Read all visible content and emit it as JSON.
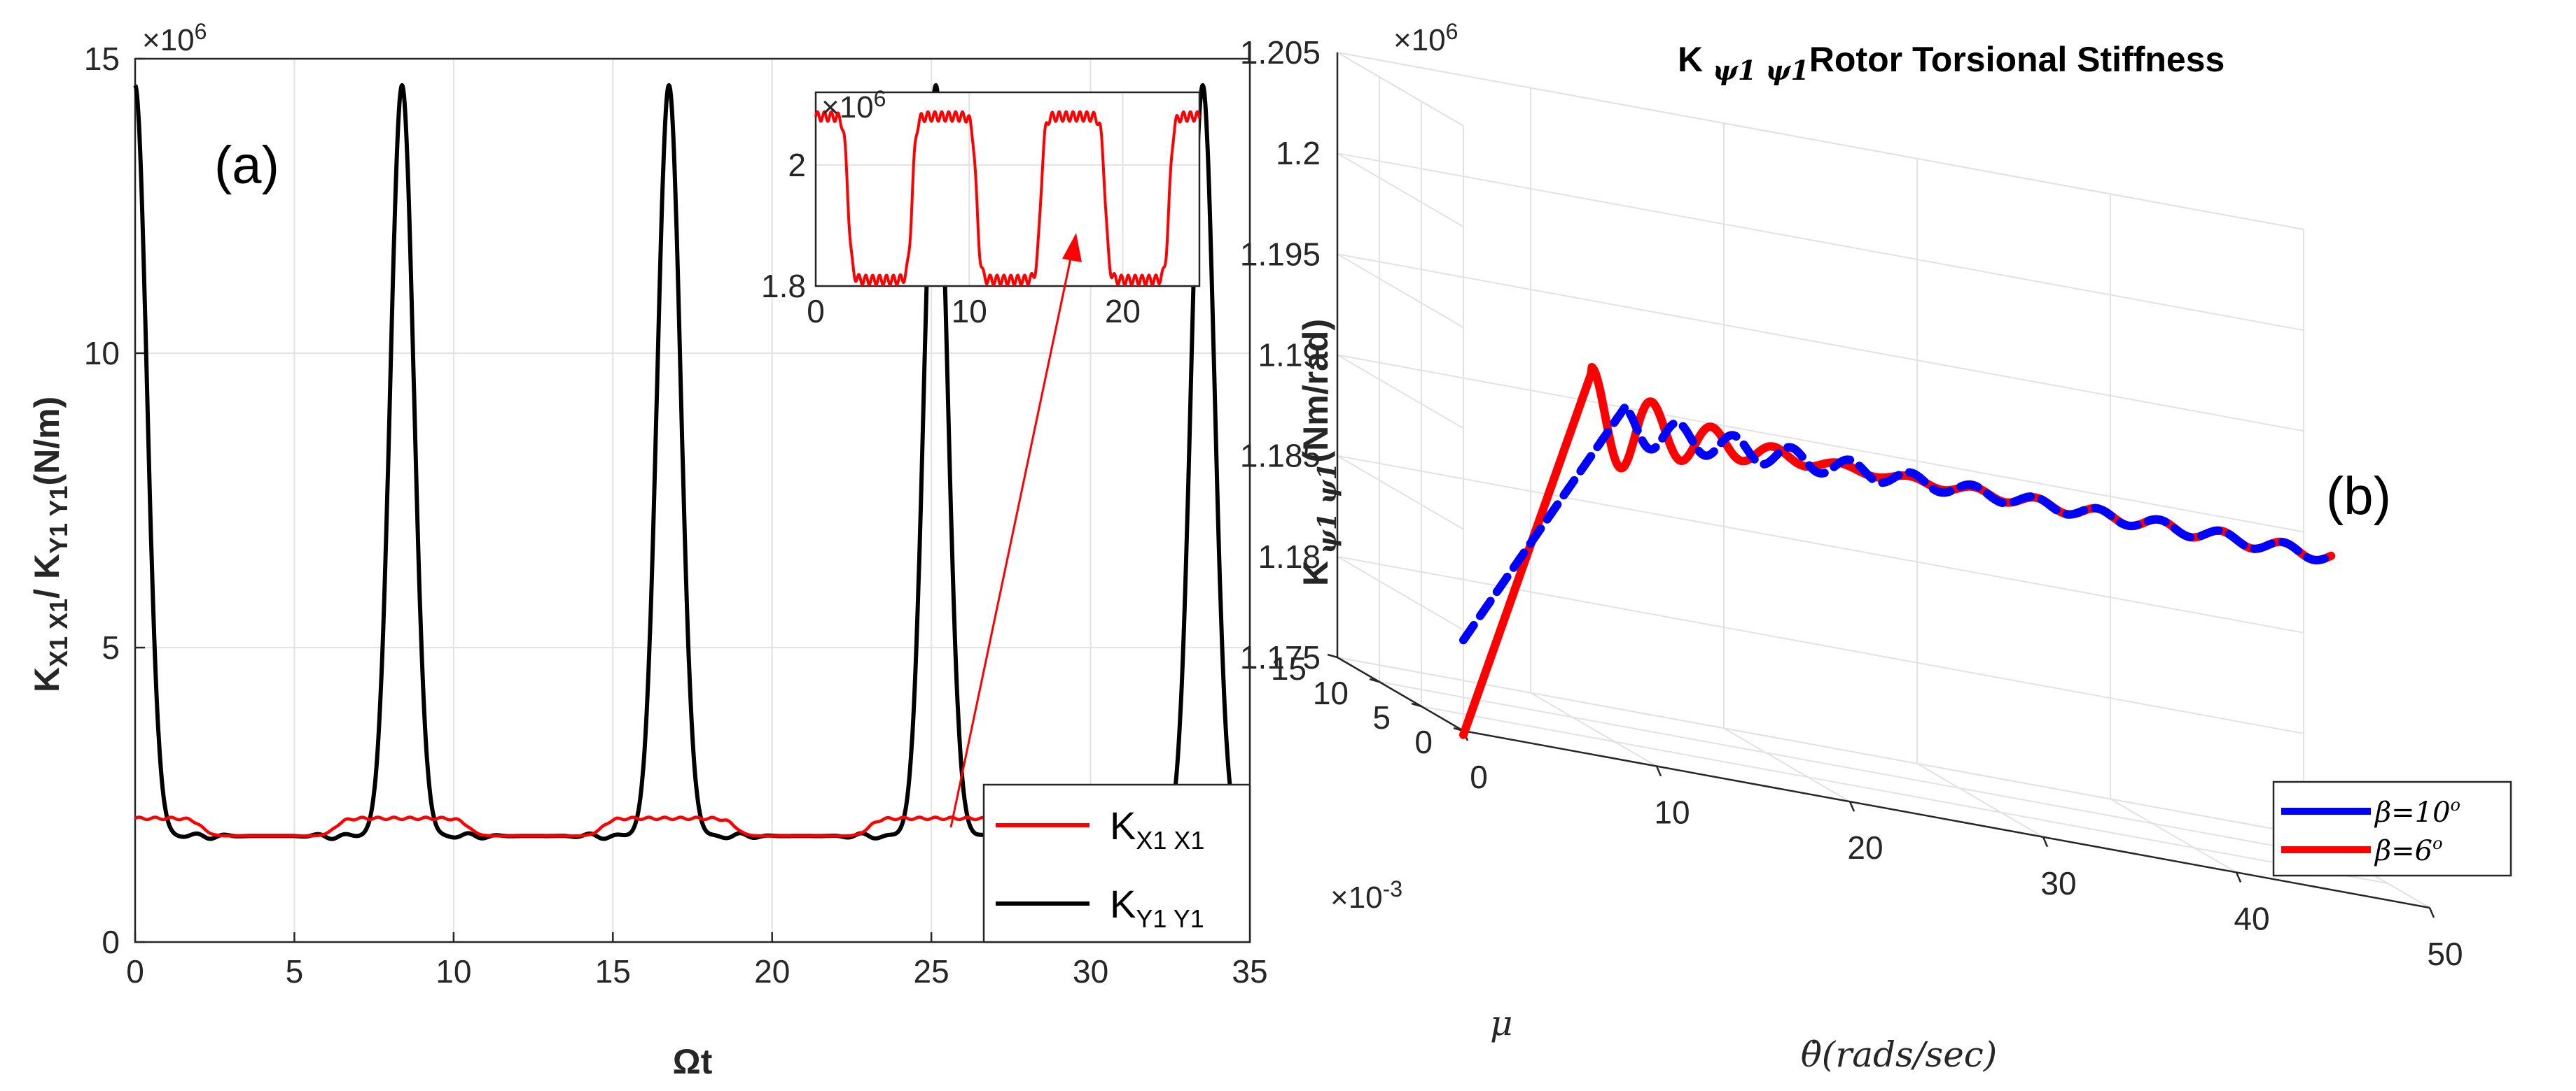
{
  "chart_data": [
    {
      "panel": "(a)",
      "type": "line",
      "xlabel": "Ωt",
      "ylabel_part1": "K",
      "ylabel_sub1": "X1 X1",
      "ylabel_part2": "/ K",
      "ylabel_sub2": "Y1 Y1",
      "ylabel_unit": "(N/m)",
      "y_multiplier": "×10",
      "y_multiplier_exp": "6",
      "xlim": [
        0,
        35
      ],
      "ylim": [
        0,
        15
      ],
      "xticks": [
        "0",
        "5",
        "10",
        "15",
        "20",
        "25",
        "30",
        "35"
      ],
      "yticks": [
        "0",
        "5",
        "10",
        "15"
      ],
      "peak_positions": [
        0,
        8.38,
        16.76,
        25.14,
        33.52
      ],
      "series": [
        {
          "name": "K",
          "sub": "X1 X1",
          "color": "#ff0000",
          "low": 1.8,
          "high": 2.1,
          "period": 8.38
        },
        {
          "name": "K",
          "sub": "Y1 Y1",
          "color": "#000000",
          "low": 1.8,
          "peak": 14.55,
          "period": 8.38
        }
      ],
      "inset": {
        "xlim": [
          0,
          25
        ],
        "ylim": [
          1.8,
          2.12
        ],
        "xticks": [
          "0",
          "10",
          "20"
        ],
        "yticks": [
          "1.8",
          "2"
        ],
        "y_multiplier": "×10",
        "y_multiplier_exp": "6",
        "low": 1.8,
        "high": 2.08,
        "period": 8.38
      }
    },
    {
      "panel": "(b)",
      "type": "line3d",
      "title_k": "K",
      "title_sub": "ψ1 ψ1",
      "title_rest": "Rotor Torsional Stiffness",
      "zlabel_k": "K",
      "zlabel_sub": "ψ1 ψ1",
      "zlabel_unit": "(Nm/rad)",
      "xlabel": "θ̇(rads/sec)",
      "ylabel": "μ",
      "z_multiplier": "×10",
      "z_multiplier_exp": "6",
      "y_multiplier": "×10",
      "y_multiplier_exp": "-3",
      "xlim": [
        0,
        50
      ],
      "ylim": [
        0,
        15
      ],
      "zlim": [
        1.175,
        1.205
      ],
      "xticks": [
        "0",
        "10",
        "20",
        "30",
        "40",
        "50"
      ],
      "yticks": [
        "0",
        "5",
        "10",
        "15"
      ],
      "zticks": [
        "1.175",
        "1.18",
        "1.185",
        "1.19",
        "1.195",
        "1.2",
        "1.205"
      ],
      "series": [
        {
          "name": "β=10",
          "deg": "o",
          "color": "#0000ff",
          "start_z": 1.1795,
          "final_z": 1.1915
        },
        {
          "name": "β=6",
          "deg": "o",
          "color": "#ff0000",
          "start_z": 1.1748,
          "final_z": 1.1915
        }
      ]
    }
  ]
}
